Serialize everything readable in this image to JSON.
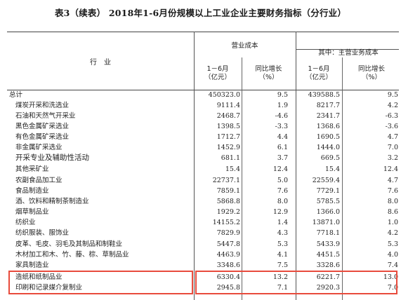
{
  "title": "表3（续表） 2018年1-6月份规模以上工业企业主要财务指标（分行业）",
  "header": {
    "industry": "行　业",
    "cost_group": "营业成本",
    "main_cost_group": "其中：主营业务成本",
    "period": "1－6月",
    "unit": "（亿元）",
    "yoy": "同比增长",
    "pct": "（%）"
  },
  "rows": [
    {
      "name": "总计",
      "cost": "450323.0",
      "cost_yoy": "9.5",
      "main": "439588.5",
      "main_yoy": "9.5"
    },
    {
      "name": "煤炭开采和洗选业",
      "cost": "9111.4",
      "cost_yoy": "1.9",
      "main": "8217.7",
      "main_yoy": "4.2"
    },
    {
      "name": "石油和天然气开采业",
      "cost": "2468.7",
      "cost_yoy": "-4.6",
      "main": "2341.7",
      "main_yoy": "-6.3"
    },
    {
      "name": "黑色金属矿采选业",
      "cost": "1398.5",
      "cost_yoy": "-3.3",
      "main": "1368.6",
      "main_yoy": "-3.6"
    },
    {
      "name": "有色金属矿采选业",
      "cost": "1712.7",
      "cost_yoy": "4.4",
      "main": "1690.5",
      "main_yoy": "4.7"
    },
    {
      "name": "非金属矿采选业",
      "cost": "1452.9",
      "cost_yoy": "6.1",
      "main": "1444.0",
      "main_yoy": "7.0"
    },
    {
      "name": "开采专业及辅助性活动",
      "cost": "681.1",
      "cost_yoy": "3.7",
      "main": "669.5",
      "main_yoy": "3.2"
    },
    {
      "name": "其他采矿业",
      "cost": "15.4",
      "cost_yoy": "12.4",
      "main": "15.4",
      "main_yoy": "12.4"
    },
    {
      "name": "农副食品加工业",
      "cost": "22737.1",
      "cost_yoy": "5.0",
      "main": "22559.4",
      "main_yoy": "4.7"
    },
    {
      "name": "食品制造业",
      "cost": "7859.1",
      "cost_yoy": "7.6",
      "main": "7729.1",
      "main_yoy": "7.6"
    },
    {
      "name": "酒、饮料和精制茶制造业",
      "cost": "5868.8",
      "cost_yoy": "8.0",
      "main": "5785.5",
      "main_yoy": "8.0"
    },
    {
      "name": "烟草制品业",
      "cost": "1929.2",
      "cost_yoy": "12.9",
      "main": "1366.0",
      "main_yoy": "8.6"
    },
    {
      "name": "纺织业",
      "cost": "14155.2",
      "cost_yoy": "1.4",
      "main": "13871.0",
      "main_yoy": "1.0"
    },
    {
      "name": "纺织服装、服饰业",
      "cost": "7829.9",
      "cost_yoy": "4.3",
      "main": "7718.1",
      "main_yoy": "4.2"
    },
    {
      "name": "皮革、毛皮、羽毛及其制品和制鞋业",
      "cost": "5447.8",
      "cost_yoy": "5.3",
      "main": "5433.9",
      "main_yoy": "5.3"
    },
    {
      "name": "木材加工和木、竹、藤、棕、草制品业",
      "cost": "4463.9",
      "cost_yoy": "4.1",
      "main": "4451.5",
      "main_yoy": "4.0"
    },
    {
      "name": "家具制造业",
      "cost": "3348.6",
      "cost_yoy": "7.5",
      "main": "3328.6",
      "main_yoy": "7.4"
    },
    {
      "name": "造纸和纸制品业",
      "cost": "6330.4",
      "cost_yoy": "13.2",
      "main": "6221.7",
      "main_yoy": "13.0"
    },
    {
      "name": "印刷和记录媒介复制业",
      "cost": "2945.8",
      "cost_yoy": "7.1",
      "main": "2920.3",
      "main_yoy": "7.0"
    }
  ],
  "colors": {
    "rule": "#444444",
    "highlight": "#e84b3c"
  }
}
